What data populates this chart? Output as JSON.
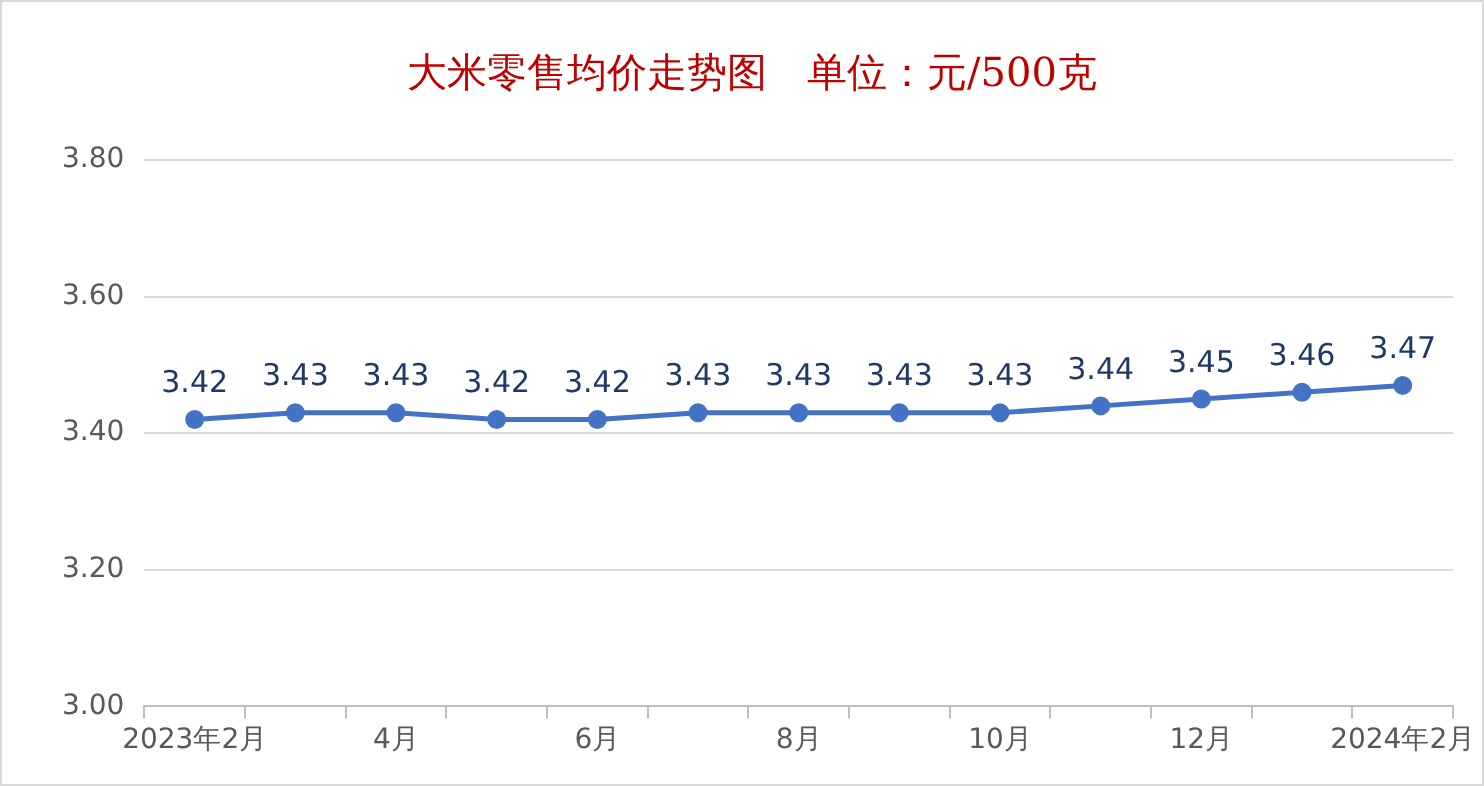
{
  "chart_data": {
    "type": "line",
    "title": "大米零售均价走势图　单位：元/500克",
    "categories": [
      "2023年2月",
      null,
      "4月",
      null,
      "6月",
      null,
      "8月",
      null,
      "10月",
      null,
      "12月",
      null,
      "2024年2月"
    ],
    "series": [
      {
        "color": "#4472c4",
        "values": [
          3.42,
          3.43,
          3.43,
          3.42,
          3.42,
          3.43,
          3.43,
          3.43,
          3.43,
          3.44,
          3.45,
          3.46,
          3.47
        ]
      }
    ],
    "ylim": [
      3.0,
      3.8
    ],
    "yticks": [
      {
        "value": 3.0,
        "label": "3.00"
      },
      {
        "value": 3.2,
        "label": "3.20"
      },
      {
        "value": 3.4,
        "label": "3.40"
      },
      {
        "value": 3.6,
        "label": "3.60"
      },
      {
        "value": 3.8,
        "label": "3.80"
      }
    ],
    "grid": "y",
    "legend": false,
    "marker": "circle",
    "line_style": "solid",
    "data_labels": true
  }
}
